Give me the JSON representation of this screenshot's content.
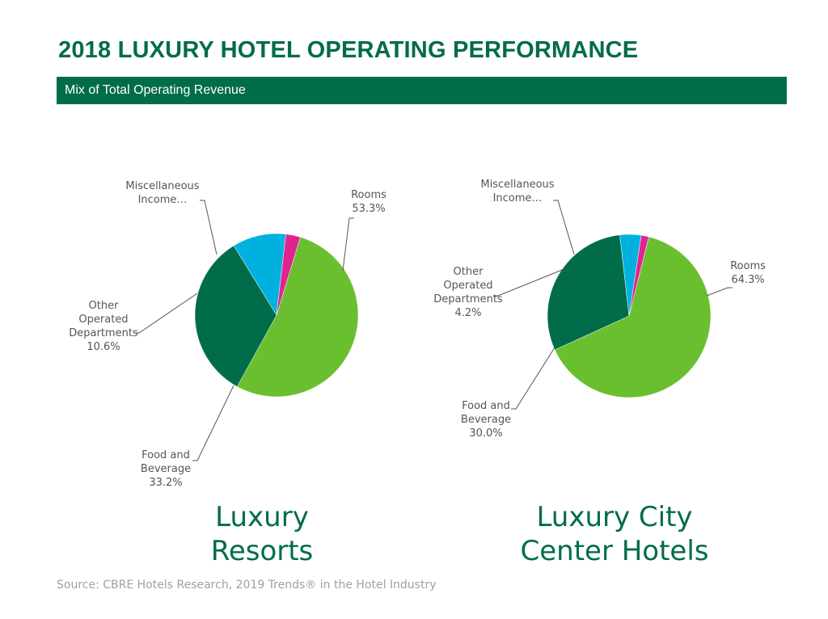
{
  "header": {
    "title": "2018 LUXURY HOTEL OPERATING PERFORMANCE",
    "subtitle": "Mix of Total Operating Revenue"
  },
  "colors": {
    "brand_green": "#006c4a",
    "rooms": "#6abf2f",
    "food_and_beverage": "#006c4a",
    "other_operated": "#00b1e0",
    "misc_income": "#e0248f"
  },
  "chart_data": [
    {
      "type": "pie",
      "caption_lines": [
        "Luxury",
        "Resorts"
      ],
      "slices": [
        {
          "label_lines": [
            "Rooms"
          ],
          "value_label": "53.3%",
          "value": 53.3,
          "color": "#6abf2f"
        },
        {
          "label_lines": [
            "Food and",
            "Beverage"
          ],
          "value_label": "33.2%",
          "value": 33.2,
          "color": "#006c4a"
        },
        {
          "label_lines": [
            "Other",
            "Operated",
            "Departments"
          ],
          "value_label": "10.6%",
          "value": 10.6,
          "color": "#00b1e0"
        },
        {
          "label_lines": [
            "Miscellaneous",
            "Income…"
          ],
          "value_label": "",
          "value": 2.9,
          "color": "#e0248f"
        }
      ]
    },
    {
      "type": "pie",
      "caption_lines": [
        "Luxury City",
        "Center Hotels"
      ],
      "slices": [
        {
          "label_lines": [
            "Rooms"
          ],
          "value_label": "64.3%",
          "value": 64.3,
          "color": "#6abf2f"
        },
        {
          "label_lines": [
            "Food and",
            "Beverage"
          ],
          "value_label": "30.0%",
          "value": 30.0,
          "color": "#006c4a"
        },
        {
          "label_lines": [
            "Other",
            "Operated",
            "Departments"
          ],
          "value_label": "4.2%",
          "value": 4.2,
          "color": "#00b1e0"
        },
        {
          "label_lines": [
            "Miscellaneous",
            "Income…"
          ],
          "value_label": "",
          "value": 1.5,
          "color": "#e0248f"
        }
      ]
    }
  ],
  "footer": {
    "source": "Source: CBRE Hotels Research, 2019 Trends® in the Hotel Industry"
  }
}
